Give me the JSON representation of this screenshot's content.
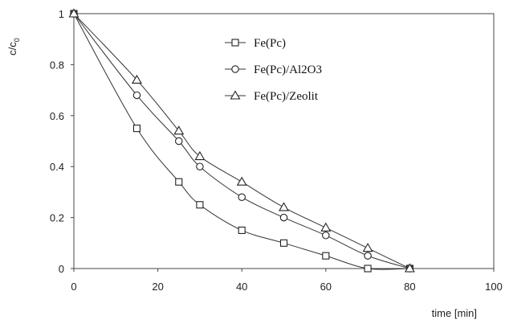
{
  "chart_data": {
    "type": "line",
    "xlabel": "time [min]",
    "ylabel_main": "c/c",
    "ylabel_sub": "0",
    "xlim": [
      0,
      100
    ],
    "ylim": [
      0,
      1
    ],
    "x_ticks": [
      "0",
      "20",
      "40",
      "60",
      "80",
      "100"
    ],
    "y_ticks": [
      "0",
      "0.2",
      "0.4",
      "0.6",
      "0.8",
      "1"
    ],
    "grid": false,
    "legend_position": "top-center",
    "series": [
      {
        "name": "Fe(Pc)",
        "marker": "square",
        "x": [
          0,
          15,
          25,
          30,
          40,
          50,
          60,
          70,
          80
        ],
        "y": [
          1.0,
          0.55,
          0.34,
          0.25,
          0.15,
          0.1,
          0.05,
          0.0,
          0.0
        ]
      },
      {
        "name": "Fe(Pc)/Al2O3",
        "marker": "circle",
        "x": [
          0,
          15,
          25,
          30,
          40,
          50,
          60,
          70,
          80
        ],
        "y": [
          1.0,
          0.68,
          0.5,
          0.4,
          0.28,
          0.2,
          0.13,
          0.05,
          0.0
        ]
      },
      {
        "name": "Fe(Pc)/Zeolit",
        "marker": "triangle",
        "x": [
          0,
          15,
          25,
          30,
          40,
          50,
          60,
          70,
          80
        ],
        "y": [
          1.0,
          0.74,
          0.54,
          0.44,
          0.34,
          0.24,
          0.16,
          0.08,
          0.0
        ]
      }
    ]
  }
}
